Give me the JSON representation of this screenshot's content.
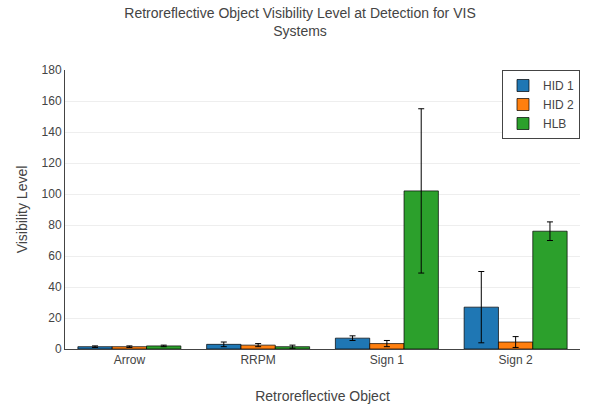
{
  "chart_data": {
    "type": "bar",
    "title": "Retroreflective Object Visibility Level at Detection for VIS\nSystems",
    "xlabel": "Retroreflective Object",
    "ylabel": "Visibility Level",
    "categories": [
      "Arrow",
      "RRPM",
      "Sign 1",
      "Sign 2"
    ],
    "series": [
      {
        "name": "HID 1",
        "values": [
          1.5,
          3.0,
          7.0,
          27.0
        ],
        "errors": [
          0.5,
          1.5,
          1.5,
          23.0
        ]
      },
      {
        "name": "HID 2",
        "values": [
          1.5,
          2.5,
          3.5,
          4.5
        ],
        "errors": [
          0.5,
          1.0,
          2.0,
          3.5
        ]
      },
      {
        "name": "HLB",
        "values": [
          2.0,
          1.5,
          102.0,
          76.0
        ],
        "errors": [
          0.5,
          1.0,
          53.0,
          6.0
        ]
      }
    ],
    "ylim": [
      0,
      180
    ],
    "yticks": [
      0,
      20,
      40,
      60,
      80,
      100,
      120,
      140,
      160,
      180
    ],
    "grid": true,
    "legend": "upper right"
  }
}
